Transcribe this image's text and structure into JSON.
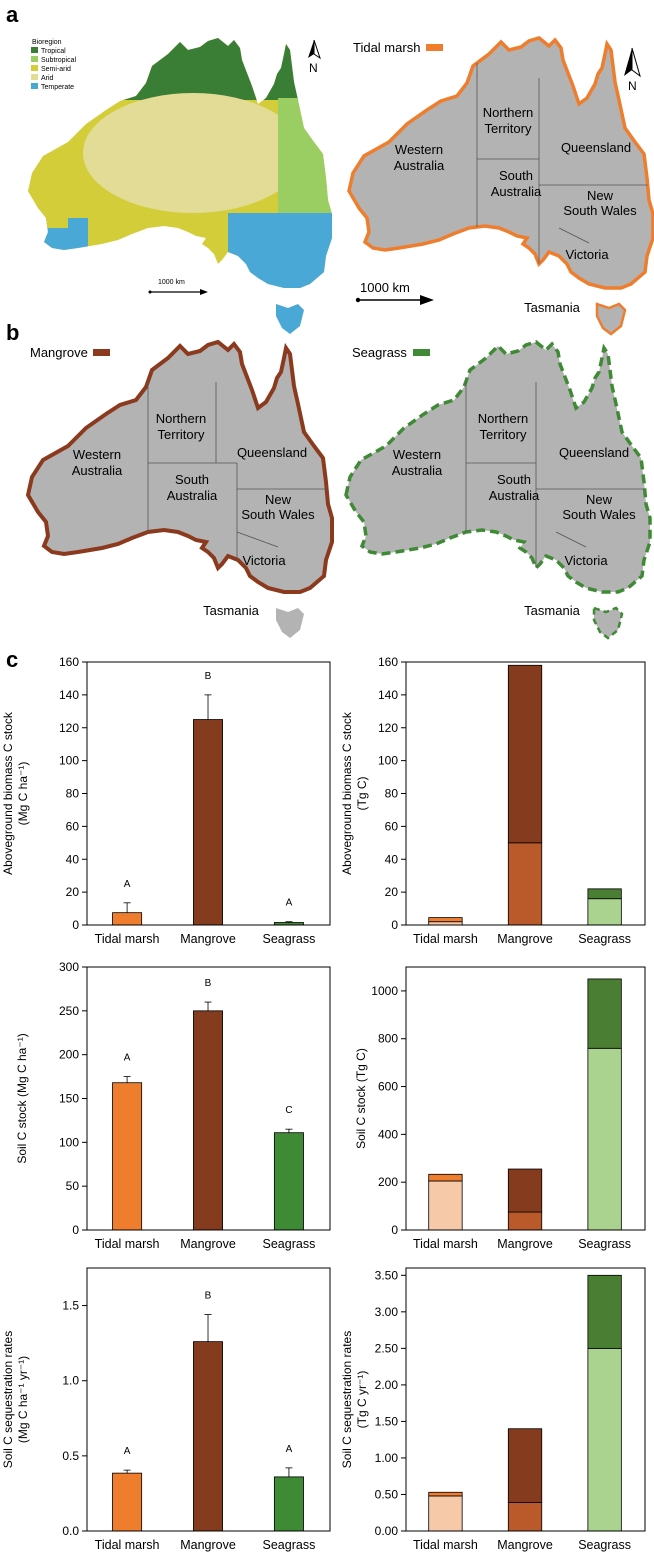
{
  "panels": {
    "a": "a",
    "b": "b",
    "c": "c"
  },
  "bioregion": {
    "title": "Bioregion",
    "items": [
      {
        "label": "Tropical",
        "color": "#3a7d34"
      },
      {
        "label": "Subtropical",
        "color": "#9acd62"
      },
      {
        "label": "Semi-arid",
        "color": "#d4cd3a"
      },
      {
        "label": "Arid",
        "color": "#e2dc97"
      },
      {
        "label": "Temperate",
        "color": "#4aa8d6"
      }
    ],
    "scale": "1000 km",
    "north": "N"
  },
  "maps": [
    {
      "legend": "Tidal marsh",
      "color": "#ee7d2e",
      "scale": "1000 km",
      "north": "N"
    },
    {
      "legend": "Mangrove",
      "color": "#8b3a1e"
    },
    {
      "legend": "Seagrass",
      "color": "#3f8a35"
    }
  ],
  "regions": {
    "wa": [
      "Western",
      "Australia"
    ],
    "nt": [
      "Northern",
      "Territory"
    ],
    "qld": [
      "Queensland"
    ],
    "sa": [
      "South",
      "Australia"
    ],
    "nsw": [
      "New",
      "South Wales"
    ],
    "vic": [
      "Victoria"
    ],
    "tas": [
      "Tasmania"
    ]
  },
  "chart_data": [
    {
      "type": "bar",
      "ylabel": [
        "Aboveground biomass C stock",
        "(Mg C ha⁻¹)"
      ],
      "categories": [
        "Tidal marsh",
        "Mangrove",
        "Seagrass"
      ],
      "ylim": [
        0,
        160
      ],
      "ticks": [
        "0",
        "20",
        "40",
        "60",
        "80",
        "100",
        "120",
        "140",
        "160"
      ],
      "values": [
        7.5,
        125,
        1.5
      ],
      "errors": [
        6,
        15,
        0.5
      ],
      "letters": [
        "A",
        "B",
        "A"
      ],
      "colors": [
        "#ee7d2e",
        "#843b1e",
        "#3f8a35"
      ]
    },
    {
      "type": "stacked-bar",
      "ylabel": [
        "Aboveground biomass C stock",
        "(Tg C)"
      ],
      "categories": [
        "Tidal marsh",
        "Mangrove",
        "Seagrass"
      ],
      "ylim": [
        0,
        160
      ],
      "ticks": [
        "0",
        "20",
        "40",
        "60",
        "80",
        "100",
        "120",
        "140",
        "160"
      ],
      "lower": [
        2,
        50,
        16
      ],
      "total": [
        4.5,
        158,
        22
      ],
      "lower_colors": [
        "#f6caa8",
        "#ba5a2a",
        "#a9d38e"
      ],
      "upper_colors": [
        "#ee7d2e",
        "#843b1e",
        "#4a7f33"
      ]
    },
    {
      "type": "bar",
      "ylabel": [
        "Soil C stock (Mg C ha⁻¹)"
      ],
      "categories": [
        "Tidal marsh",
        "Mangrove",
        "Seagrass"
      ],
      "ylim": [
        0,
        300
      ],
      "ticks": [
        "0",
        "50",
        "100",
        "150",
        "200",
        "250",
        "300"
      ],
      "values": [
        168,
        250,
        111
      ],
      "errors": [
        7,
        10,
        4
      ],
      "letters": [
        "A",
        "B",
        "C"
      ],
      "colors": [
        "#ee7d2e",
        "#843b1e",
        "#3f8a35"
      ]
    },
    {
      "type": "stacked-bar",
      "ylabel": [
        "Soil C stock (Tg C)"
      ],
      "categories": [
        "Tidal marsh",
        "Mangrove",
        "Seagrass"
      ],
      "ylim": [
        0,
        1100
      ],
      "ticks": [
        "0",
        "200",
        "400",
        "600",
        "800",
        "1000"
      ],
      "lower": [
        205,
        75,
        760
      ],
      "total": [
        233,
        255,
        1050
      ],
      "lower_colors": [
        "#f6caa8",
        "#ba5a2a",
        "#a9d38e"
      ],
      "upper_colors": [
        "#ee7d2e",
        "#843b1e",
        "#4a7f33"
      ]
    },
    {
      "type": "bar",
      "ylabel": [
        "Soil C sequestration rates",
        "(Mg C ha⁻¹ yr⁻¹)"
      ],
      "categories": [
        "Tidal marsh",
        "Mangrove",
        "Seagrass"
      ],
      "ylim": [
        0,
        1.75
      ],
      "ticks": [
        "0.0",
        "0.5",
        "1.0",
        "1.5"
      ],
      "values": [
        0.385,
        1.26,
        0.36
      ],
      "errors": [
        0.02,
        0.18,
        0.06
      ],
      "letters": [
        "A",
        "B",
        "A"
      ],
      "colors": [
        "#ee7d2e",
        "#843b1e",
        "#3f8a35"
      ]
    },
    {
      "type": "stacked-bar",
      "ylabel": [
        "Soil C sequestration rates",
        "(Tg C yr⁻¹)"
      ],
      "categories": [
        "Tidal marsh",
        "Mangrove",
        "Seagrass"
      ],
      "ylim": [
        0,
        3.6
      ],
      "ticks": [
        "0.00",
        "0.50",
        "1.00",
        "1.50",
        "2.00",
        "2.50",
        "3.00",
        "3.50"
      ],
      "lower": [
        0.48,
        0.39,
        2.5
      ],
      "total": [
        0.53,
        1.4,
        3.5
      ],
      "lower_colors": [
        "#f6caa8",
        "#ba5a2a",
        "#a9d38e"
      ],
      "upper_colors": [
        "#ee7d2e",
        "#843b1e",
        "#4a7f33"
      ]
    }
  ]
}
